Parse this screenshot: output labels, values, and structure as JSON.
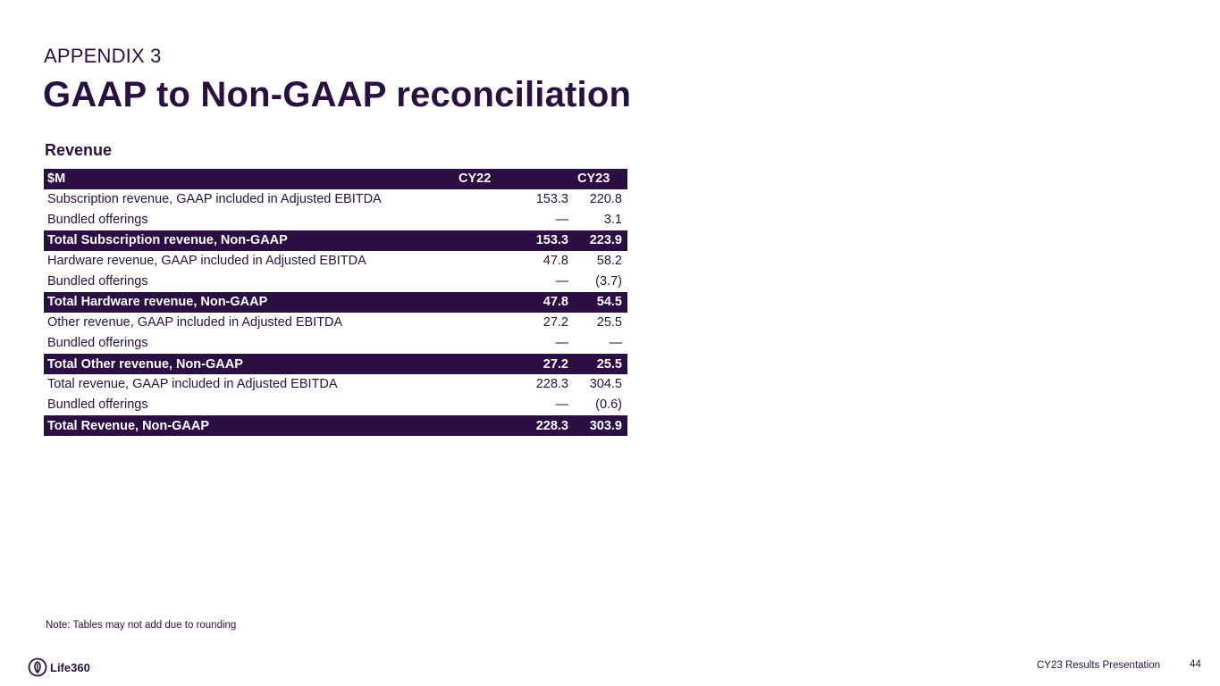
{
  "header": {
    "eyebrow": "APPENDIX 3",
    "title": "GAAP to Non-GAAP reconciliation",
    "section": "Revenue"
  },
  "table": {
    "headers": [
      "$M",
      "CY22",
      "CY23"
    ],
    "rows": [
      {
        "style": "normal",
        "label": "Subscription revenue, GAAP included in Adjusted EBITDA",
        "cy22": "153.3",
        "cy23": "220.8"
      },
      {
        "style": "normal",
        "label": "Bundled offerings",
        "cy22": "—",
        "cy23": "3.1"
      },
      {
        "style": "dark",
        "label": "Total Subscription revenue, Non-GAAP",
        "cy22": "153.3",
        "cy23": "223.9"
      },
      {
        "style": "normal",
        "label": "Hardware revenue, GAAP included in Adjusted EBITDA",
        "cy22": "47.8",
        "cy23": "58.2"
      },
      {
        "style": "normal",
        "label": "Bundled offerings",
        "cy22": "—",
        "cy23": "(3.7)"
      },
      {
        "style": "dark",
        "label": "Total Hardware revenue, Non-GAAP",
        "cy22": "47.8",
        "cy23": "54.5"
      },
      {
        "style": "normal",
        "label": "Other revenue, GAAP included in Adjusted EBITDA",
        "cy22": "27.2",
        "cy23": "25.5"
      },
      {
        "style": "normal",
        "label": "Bundled offerings",
        "cy22": "—",
        "cy23": "—"
      },
      {
        "style": "dark",
        "label": "Total Other revenue, Non-GAAP",
        "cy22": "27.2",
        "cy23": "25.5"
      },
      {
        "style": "normal",
        "label": "Total revenue, GAAP included in Adjusted EBITDA",
        "cy22": "228.3",
        "cy23": "304.5"
      },
      {
        "style": "normal",
        "label": "Bundled offerings",
        "cy22": "—",
        "cy23": "(0.6)"
      },
      {
        "style": "dark",
        "label": "Total Revenue, Non-GAAP",
        "cy22": "228.3",
        "cy23": "303.9"
      }
    ]
  },
  "note": "Note: Tables may not add due to rounding",
  "footer": {
    "logo_text": "Life360",
    "presentation": "CY23 Results Presentation",
    "page": "44"
  },
  "colors": {
    "brand_dark": "#2b0f44",
    "text": "#2a1040"
  }
}
